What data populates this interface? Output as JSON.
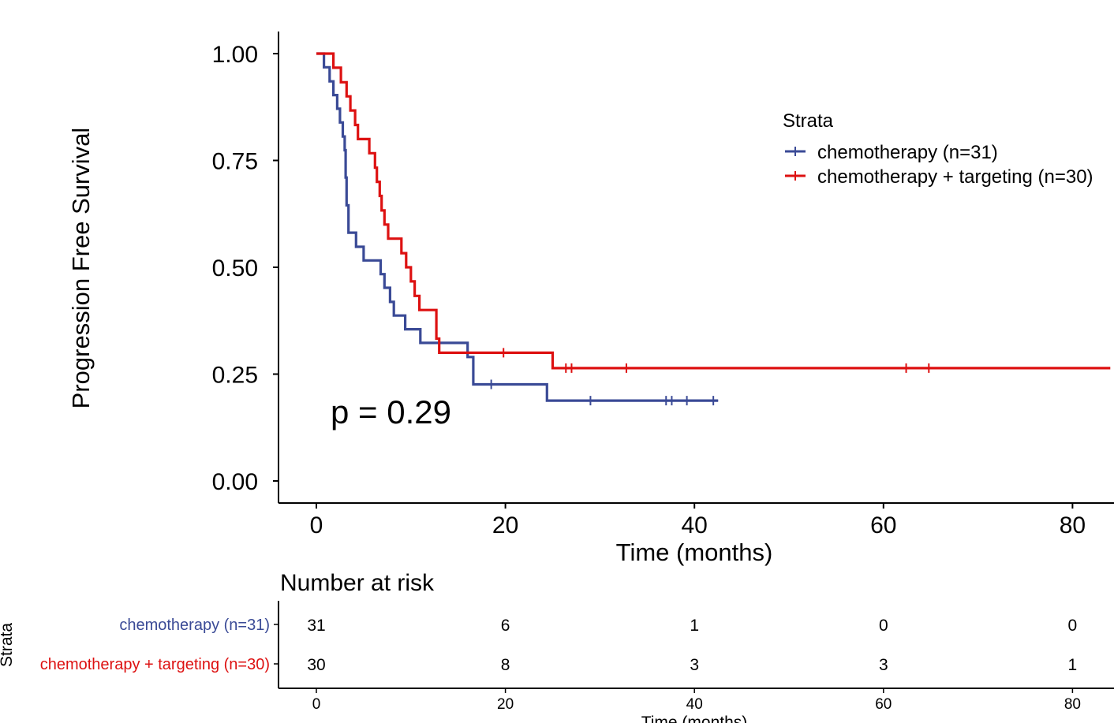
{
  "chart_data": {
    "type": "line",
    "subtype": "kaplan-meier",
    "ylabel": "Progression Free Survival",
    "xlabel": "Time (months)",
    "xlim": [
      0,
      84
    ],
    "ylim": [
      0,
      1
    ],
    "xticks": [
      "0",
      "20",
      "40",
      "60",
      "80"
    ],
    "yticks": [
      "0.00",
      "0.25",
      "0.50",
      "0.75",
      "1.00"
    ],
    "xtick_values": [
      0,
      20,
      40,
      60,
      80
    ],
    "ytick_values": [
      0,
      0.25,
      0.5,
      0.75,
      1.0
    ],
    "p_value_label": "p = 0.29",
    "legend": {
      "title": "Strata",
      "position": "right",
      "entries": [
        "chemotherapy (n=31)",
        "chemotherapy + targeting (n=30)"
      ]
    },
    "series": [
      {
        "name": "chemotherapy (n=31)",
        "color": "#3a4a96",
        "steps": [
          [
            0,
            1.0
          ],
          [
            0.8,
            0.968
          ],
          [
            1.4,
            0.935
          ],
          [
            1.8,
            0.903
          ],
          [
            2.2,
            0.871
          ],
          [
            2.5,
            0.839
          ],
          [
            2.8,
            0.806
          ],
          [
            3.0,
            0.774
          ],
          [
            3.1,
            0.71
          ],
          [
            3.2,
            0.645
          ],
          [
            3.4,
            0.581
          ],
          [
            4.2,
            0.548
          ],
          [
            5.0,
            0.516
          ],
          [
            6.8,
            0.484
          ],
          [
            7.2,
            0.452
          ],
          [
            7.8,
            0.419
          ],
          [
            8.2,
            0.387
          ],
          [
            9.4,
            0.355
          ],
          [
            11.0,
            0.323
          ],
          [
            16.0,
            0.29
          ],
          [
            16.6,
            0.226
          ],
          [
            24.4,
            0.188
          ]
        ],
        "end_x": 42.5,
        "censor_x": [
          18.5,
          29.0,
          37.0,
          37.6,
          39.2,
          42.0
        ]
      },
      {
        "name": "chemotherapy + targeting (n=30)",
        "color": "#dd1111",
        "steps": [
          [
            0,
            1.0
          ],
          [
            1.8,
            0.967
          ],
          [
            2.6,
            0.933
          ],
          [
            3.2,
            0.9
          ],
          [
            3.6,
            0.867
          ],
          [
            4.1,
            0.833
          ],
          [
            4.4,
            0.8
          ],
          [
            5.6,
            0.767
          ],
          [
            6.2,
            0.733
          ],
          [
            6.4,
            0.7
          ],
          [
            6.7,
            0.667
          ],
          [
            6.9,
            0.633
          ],
          [
            7.2,
            0.6
          ],
          [
            7.6,
            0.567
          ],
          [
            9.0,
            0.533
          ],
          [
            9.5,
            0.5
          ],
          [
            10.0,
            0.467
          ],
          [
            10.4,
            0.433
          ],
          [
            10.9,
            0.4
          ],
          [
            12.7,
            0.333
          ],
          [
            13.0,
            0.3
          ],
          [
            25.0,
            0.264
          ]
        ],
        "end_x": 84,
        "censor_x": [
          19.8,
          26.4,
          27.0,
          32.8,
          62.4,
          64.8
        ]
      }
    ],
    "risk_table": {
      "title": "Number at risk",
      "ylabel": "Strata",
      "xlabel": "Time (months)",
      "times": [
        0,
        20,
        40,
        60,
        80
      ],
      "tick_labels": [
        "0",
        "20",
        "40",
        "60",
        "80"
      ],
      "rows": [
        {
          "label": "chemotherapy (n=31)",
          "color": "#3a4a96",
          "values": [
            "31",
            "6",
            "1",
            "0",
            "0"
          ]
        },
        {
          "label": "chemotherapy + targeting (n=30)",
          "color": "#dd1111",
          "values": [
            "30",
            "8",
            "3",
            "3",
            "1"
          ]
        }
      ]
    }
  }
}
